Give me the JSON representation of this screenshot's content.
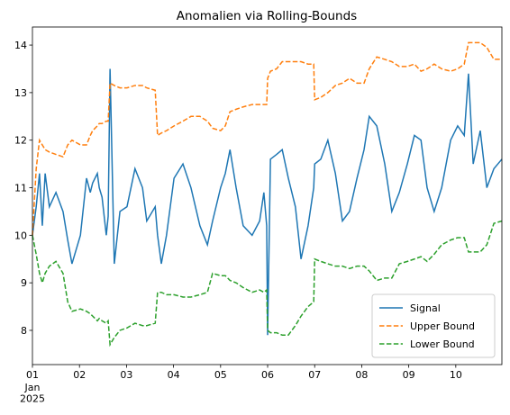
{
  "chart_data": {
    "type": "line",
    "title": "Anomalien via Rolling-Bounds",
    "x": [
      0,
      0.08,
      0.15,
      0.21,
      0.27,
      0.36,
      0.5,
      0.65,
      0.75,
      0.84,
      1.02,
      1.15,
      1.23,
      1.28,
      1.38,
      1.42,
      1.48,
      1.57,
      1.61,
      1.65,
      1.74,
      1.86,
      2.01,
      2.18,
      2.34,
      2.43,
      2.61,
      2.66,
      2.74,
      2.85,
      3.01,
      3.2,
      3.37,
      3.56,
      3.72,
      3.83,
      4.0,
      4.1,
      4.2,
      4.33,
      4.48,
      4.67,
      4.83,
      4.92,
      4.98,
      5.0,
      5.06,
      5.19,
      5.31,
      5.44,
      5.59,
      5.71,
      5.86,
      5.98,
      6.0,
      6.13,
      6.28,
      6.44,
      6.59,
      6.74,
      6.9,
      7.05,
      7.16,
      7.32,
      7.49,
      7.64,
      7.8,
      7.97,
      8.12,
      8.26,
      8.39,
      8.54,
      8.7,
      8.89,
      9.04,
      9.18,
      9.27,
      9.37,
      9.52,
      9.66,
      9.81,
      9.98
    ],
    "series": [
      {
        "name": "Signal",
        "color": "#1f77b4",
        "linestyle": "solid",
        "values": [
          10.0,
          10.6,
          11.3,
          10.2,
          11.3,
          10.6,
          10.9,
          10.5,
          9.9,
          9.4,
          10.0,
          11.2,
          10.9,
          11.1,
          11.3,
          11.0,
          10.8,
          10.0,
          10.4,
          13.5,
          9.4,
          10.5,
          10.6,
          11.4,
          11.0,
          10.3,
          10.6,
          10.0,
          9.4,
          10.0,
          11.2,
          11.5,
          11.0,
          10.2,
          9.8,
          10.3,
          11.0,
          11.3,
          11.8,
          11.0,
          10.2,
          10.0,
          10.3,
          10.9,
          10.2,
          7.9,
          11.6,
          11.7,
          11.8,
          11.2,
          10.6,
          9.5,
          10.2,
          11.0,
          11.5,
          11.6,
          12.0,
          11.3,
          10.3,
          10.5,
          11.2,
          11.8,
          12.5,
          12.3,
          11.5,
          10.5,
          10.9,
          11.5,
          12.1,
          12.0,
          11.0,
          10.5,
          11.0,
          12.0,
          12.3,
          12.1,
          13.4,
          11.5,
          12.2,
          11.0,
          11.4,
          11.6
        ]
      },
      {
        "name": "Upper Bound",
        "color": "#ff7f0e",
        "linestyle": "dashed",
        "values": [
          10.0,
          11.4,
          12.0,
          11.9,
          11.8,
          11.75,
          11.7,
          11.65,
          11.9,
          12.0,
          11.9,
          11.9,
          12.1,
          12.2,
          12.3,
          12.35,
          12.35,
          12.4,
          12.4,
          13.2,
          13.15,
          13.1,
          13.1,
          13.15,
          13.15,
          13.1,
          13.05,
          12.1,
          12.15,
          12.2,
          12.3,
          12.4,
          12.5,
          12.5,
          12.4,
          12.25,
          12.2,
          12.3,
          12.6,
          12.65,
          12.7,
          12.75,
          12.75,
          12.75,
          12.75,
          13.3,
          13.45,
          13.5,
          13.65,
          13.65,
          13.65,
          13.65,
          13.6,
          13.6,
          12.85,
          12.9,
          13.0,
          13.15,
          13.2,
          13.3,
          13.2,
          13.2,
          13.5,
          13.75,
          13.7,
          13.65,
          13.55,
          13.55,
          13.6,
          13.45,
          13.5,
          13.6,
          13.5,
          13.45,
          13.5,
          13.6,
          14.05,
          14.05,
          14.05,
          13.95,
          13.7,
          13.7
        ]
      },
      {
        "name": "Lower Bound",
        "color": "#2ca02c",
        "linestyle": "dashed",
        "values": [
          10.0,
          9.6,
          9.2,
          9.0,
          9.2,
          9.35,
          9.45,
          9.2,
          8.6,
          8.4,
          8.45,
          8.4,
          8.35,
          8.3,
          8.2,
          8.25,
          8.2,
          8.15,
          8.2,
          7.7,
          7.85,
          8.0,
          8.05,
          8.15,
          8.1,
          8.1,
          8.15,
          8.8,
          8.8,
          8.75,
          8.75,
          8.7,
          8.7,
          8.75,
          8.8,
          9.2,
          9.15,
          9.15,
          9.05,
          9.0,
          8.9,
          8.8,
          8.85,
          8.8,
          8.85,
          8.0,
          7.95,
          7.95,
          7.9,
          7.9,
          8.1,
          8.3,
          8.5,
          8.6,
          9.5,
          9.45,
          9.4,
          9.35,
          9.35,
          9.3,
          9.35,
          9.35,
          9.25,
          9.05,
          9.1,
          9.1,
          9.4,
          9.45,
          9.5,
          9.55,
          9.45,
          9.6,
          9.8,
          9.9,
          9.95,
          9.95,
          9.65,
          9.65,
          9.65,
          9.8,
          10.25,
          10.3
        ]
      }
    ],
    "xlim": [
      0,
      9.98
    ],
    "xticks": [
      {
        "value": 0,
        "label": "01"
      },
      {
        "value": 1,
        "label": "02"
      },
      {
        "value": 2,
        "label": "03"
      },
      {
        "value": 3,
        "label": "04"
      },
      {
        "value": 4,
        "label": "05"
      },
      {
        "value": 5,
        "label": "06"
      },
      {
        "value": 6,
        "label": "07"
      },
      {
        "value": 7,
        "label": "08"
      },
      {
        "value": 8,
        "label": "09"
      },
      {
        "value": 9,
        "label": "10"
      }
    ],
    "x_tick_sublabels": [
      "Jan",
      "2025"
    ],
    "ylim": [
      7.28,
      14.38
    ],
    "yticks": [
      8,
      9,
      10,
      11,
      12,
      13,
      14
    ],
    "grid": false,
    "legend": "lower right"
  }
}
